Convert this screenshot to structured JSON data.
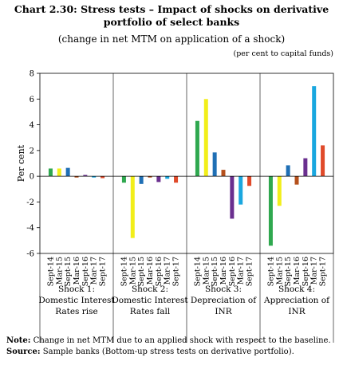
{
  "title_line1": "Chart 2.30: Stress tests – Impact of shocks on derivative",
  "title_line2": "portfolio of select banks",
  "subtitle": "(change in net MTM on application of a shock)",
  "unit_note": "(per cent to capital funds)",
  "note_label": "Note:",
  "note_text": "Change in net MTM due to an applied shock with respect to the baseline.",
  "source_label": "Source:",
  "source_text": "Sample banks (Bottom-up stress tests on derivative portfolio).",
  "colors": {
    "Sept-14": "#2fa84f",
    "Mar-15": "#f2ee1a",
    "Sept-15": "#1f6fb5",
    "Mar-16": "#b5501c",
    "Sept-16": "#6a2f8f",
    "Mar-17": "#1aa7df",
    "Sept-17": "#e04a2a"
  },
  "chart_data": {
    "type": "bar",
    "title": "Chart 2.30: Stress tests – Impact of shocks on derivative portfolio of select banks",
    "subtitle": "(change in net MTM on application of a shock)",
    "ylabel": "Per cent",
    "ylim": [
      -6,
      8
    ],
    "yticks": [
      -6,
      -4,
      -2,
      0,
      2,
      4,
      6,
      8
    ],
    "grid": false,
    "periods": [
      "Sept-14",
      "Mar-15",
      "Sept-15",
      "Mar-16",
      "Sept-16",
      "Mar-17",
      "Sept-17"
    ],
    "groups": [
      {
        "label_lines": [
          "Shock 1:",
          "Domestic Interest",
          "Rates rise"
        ],
        "values": [
          0.6,
          0.6,
          0.65,
          -0.1,
          0.1,
          -0.1,
          -0.15
        ]
      },
      {
        "label_lines": [
          "Shock 2:",
          "Domestic Interest",
          "Rates fall"
        ],
        "values": [
          -0.5,
          -4.8,
          -0.6,
          -0.1,
          -0.45,
          -0.2,
          -0.5
        ]
      },
      {
        "label_lines": [
          "Shock 3:",
          "Depreciation of",
          "INR"
        ],
        "values": [
          4.3,
          6.0,
          1.85,
          0.5,
          -3.3,
          -2.2,
          -0.75
        ]
      },
      {
        "label_lines": [
          "Shock 4:",
          "Appreciation of",
          "INR"
        ],
        "values": [
          -5.4,
          -2.3,
          0.85,
          -0.65,
          1.4,
          7.0,
          2.4
        ]
      }
    ]
  }
}
